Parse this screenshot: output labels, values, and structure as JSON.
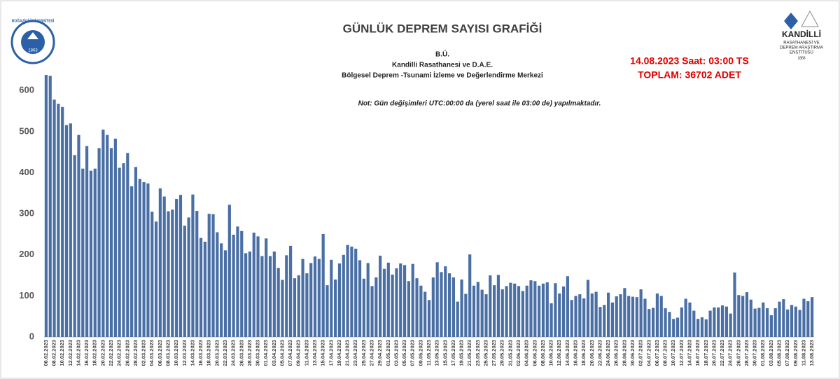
{
  "header": {
    "title": "GÜNLÜK  DEPREM SAYISI GRAFİĞİ",
    "subtitle": [
      "B.Ü.",
      "Kandilli Rasathanesi ve D.A.E.",
      "Bölgesel Deprem -Tsunami İzleme ve Değerlendirme Merkezi"
    ],
    "date_line": "14.08.2023  Saat: 03:00  TS",
    "total_line": "TOPLAM:  36702  ADET",
    "note": "Not: Gün değişimleri UTC:00:00 da (yerel saat ile 03:00 de) yapılmaktadır."
  },
  "logos": {
    "left": {
      "name": "BOĞAZİÇİ ÜNİVERSİTESİ",
      "year": "1863"
    },
    "right": {
      "lines": [
        "KANDİLLİ",
        "RASATHANESİ VE",
        "DEPREM ARAŞTIRMA",
        "ENSTİTÜSÜ",
        "1868"
      ]
    }
  },
  "chart_data": {
    "type": "bar",
    "color": "#4a6fa5",
    "grid": false,
    "ylim": [
      0,
      650
    ],
    "yticks": [
      0,
      100,
      200,
      300,
      400,
      500,
      600
    ],
    "categories": [
      "06.02.2023",
      null,
      "08.02.2023",
      null,
      "10.02.2023",
      null,
      "12.02.2023",
      null,
      "14.02.2023",
      null,
      "16.02.2023",
      null,
      "18.02.2023",
      null,
      "20.02.2023",
      null,
      "22.02.2023",
      null,
      "24.02.2023",
      null,
      "26.02.2023",
      null,
      "28.02.2023",
      null,
      "02.03.2023",
      null,
      "04.03.2023",
      null,
      "06.03.2023",
      null,
      "08.03.2023",
      null,
      "10.03.2023",
      null,
      "12.03.2023",
      null,
      "14.03.2023",
      null,
      "16.03.2023",
      null,
      "18.03.2023",
      null,
      "20.03.2023",
      null,
      "22.03.2023",
      null,
      "24.03.2023",
      null,
      "26.03.2023",
      null,
      "28.03.2023",
      null,
      "30.03.2023",
      null,
      "01.04.2023",
      null,
      "03.04.2023",
      null,
      "05.04.2023",
      null,
      "07.04.2023",
      null,
      "09.04.2023",
      null,
      "11.04.2023",
      null,
      "13.04.2023",
      null,
      "15.04.2023",
      null,
      "17.04.2023",
      null,
      "19.04.2023",
      null,
      "21.04.2023",
      null,
      "23.04.2023",
      null,
      "25.04.2023",
      null,
      "27.04.2023",
      null,
      "29.04.2023",
      null,
      "01.05.2023",
      null,
      "03.05.2023",
      null,
      "05.05.2023",
      null,
      "07.05.2023",
      null,
      "09.05.2023",
      null,
      "11.05.2023",
      null,
      "13.05.2023",
      null,
      "15.05.2023",
      null,
      "17.05.2023",
      null,
      "19.05.2023",
      null,
      "21.05.2023",
      null,
      "23.05.2023",
      null,
      "25.05.2023",
      null,
      "27.05.2023",
      null,
      "29.05.2023",
      null,
      "31.05.2023",
      null,
      "02.06.2023",
      null,
      "04.06.2023",
      null,
      "06.06.2023",
      null,
      "08.06.2023",
      null,
      "10.06.2023",
      null,
      "12.06.2023",
      null,
      "14.06.2023",
      null,
      "16.06.2023",
      null,
      "18.06.2023",
      null,
      "20.06.2023",
      null,
      "22.06.2023",
      null,
      "24.06.2023",
      null,
      "26.06.2023",
      null,
      "28.06.2023",
      null,
      "30.06.2023",
      null,
      "02.07.2023",
      null,
      "04.07.2023",
      null,
      "06.07.2023",
      null,
      "08.07.2023",
      null,
      "10.07.2023",
      null,
      "12.07.2023",
      null,
      "14.07.2023",
      null,
      "16.07.2023",
      null,
      "18.07.2023",
      null,
      "20.07.2023",
      null,
      "22.07.2023",
      null,
      "24.07.2023",
      null,
      "26.07.2023",
      null,
      "28.07.2023",
      null,
      "30.07.2023",
      null,
      "01.08.2023",
      null,
      "03.08.2023",
      null,
      "05.08.2023",
      null,
      "07.08.2023",
      null,
      "09.08.2023",
      null,
      "11.08.2023",
      null,
      "13.08.2023"
    ],
    "values": [
      638,
      636,
      578,
      568,
      560,
      516,
      520,
      443,
      492,
      410,
      465,
      405,
      410,
      460,
      505,
      492,
      460,
      483,
      412,
      423,
      448,
      367,
      414,
      385,
      377,
      374,
      305,
      281,
      362,
      342,
      306,
      310,
      336,
      346,
      271,
      291,
      347,
      307,
      241,
      232,
      300,
      299,
      255,
      228,
      211,
      322,
      249,
      269,
      258,
      204,
      208,
      254,
      245,
      197,
      240,
      197,
      208,
      168,
      139,
      199,
      222,
      143,
      150,
      190,
      155,
      180,
      196,
      190,
      251,
      126,
      188,
      140,
      179,
      200,
      224,
      220,
      215,
      187,
      142,
      180,
      124,
      145,
      198,
      166,
      181,
      152,
      167,
      179,
      175,
      136,
      178,
      143,
      125,
      110,
      90,
      145,
      182,
      158,
      172,
      155,
      145,
      86,
      140,
      105,
      201,
      125,
      134,
      115,
      104,
      150,
      126,
      151,
      116,
      124,
      132,
      130,
      124,
      112,
      125,
      138,
      136,
      125,
      130,
      133,
      82,
      131,
      106,
      123,
      148,
      90,
      100,
      104,
      94,
      139,
      106,
      110,
      73,
      78,
      108,
      84,
      99,
      104,
      119,
      100,
      98,
      97,
      116,
      93,
      68,
      71,
      106,
      100,
      70,
      61,
      44,
      47,
      72,
      93,
      84,
      64,
      44,
      48,
      43,
      64,
      72,
      72,
      77,
      74,
      57,
      157,
      102,
      100,
      109,
      91,
      69,
      71,
      84,
      70,
      53,
      70,
      86,
      92,
      67,
      78,
      74,
      66,
      93,
      87,
      97
    ]
  }
}
